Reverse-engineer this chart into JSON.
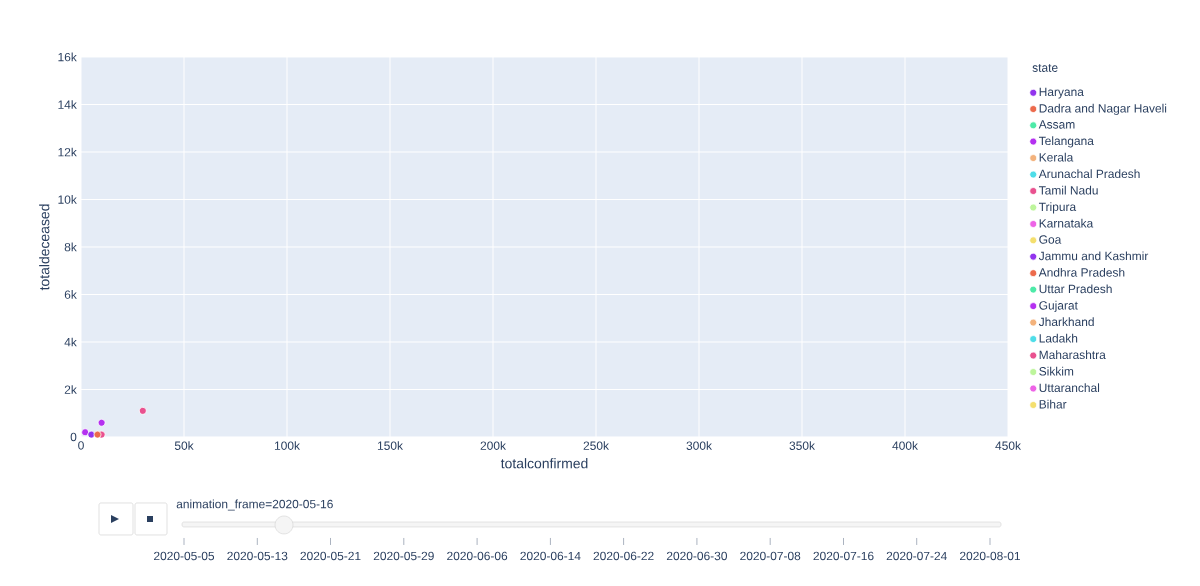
{
  "chart_data": {
    "type": "scatter",
    "xlabel": "totalconfirmed",
    "ylabel": "totaldeceased",
    "legend_title": "state",
    "xlim": [
      0,
      450000
    ],
    "ylim": [
      0,
      16000
    ],
    "xticks": [
      0,
      {
        "value": 50000,
        "label": "50k"
      },
      {
        "value": 100000,
        "label": "100k"
      },
      {
        "value": 150000,
        "label": "150k"
      },
      {
        "value": 200000,
        "label": "200k"
      },
      {
        "value": 250000,
        "label": "250k"
      },
      {
        "value": 300000,
        "label": "300k"
      },
      {
        "value": 350000,
        "label": "350k"
      },
      {
        "value": 400000,
        "label": "400k"
      },
      {
        "value": 450000,
        "label": "450k"
      }
    ],
    "yticks": [
      0,
      {
        "value": 2000,
        "label": "2k"
      },
      {
        "value": 4000,
        "label": "4k"
      },
      {
        "value": 6000,
        "label": "6k"
      },
      {
        "value": 8000,
        "label": "8k"
      },
      {
        "value": 10000,
        "label": "10k"
      },
      {
        "value": 12000,
        "label": "12k"
      },
      {
        "value": 14000,
        "label": "14k"
      },
      {
        "value": 16000,
        "label": "16k"
      }
    ],
    "grid": true,
    "legend": "right",
    "marker": "circle",
    "series": [
      {
        "name": "Haryana",
        "color": "#9234ee",
        "x": [
          null
        ],
        "values": [
          null
        ]
      },
      {
        "name": "Dadra and Nagar Haveli",
        "color": "#ec6a4c",
        "x": [
          null
        ],
        "values": [
          null
        ]
      },
      {
        "name": "Assam",
        "color": "#4deaa8",
        "x": [
          null
        ],
        "values": [
          null
        ]
      },
      {
        "name": "Telangana",
        "color": "#b430f0",
        "x": [
          2000
        ],
        "values": [
          200
        ]
      },
      {
        "name": "Kerala",
        "color": "#f3b27c",
        "x": [
          null
        ],
        "values": [
          null
        ]
      },
      {
        "name": "Arunachal Pradesh",
        "color": "#4edde8",
        "x": [
          null
        ],
        "values": [
          null
        ]
      },
      {
        "name": "Tamil Nadu",
        "color": "#e9518f",
        "x": [
          10000
        ],
        "values": [
          100
        ]
      },
      {
        "name": "Tripura",
        "color": "#bdf59b",
        "x": [
          null
        ],
        "values": [
          null
        ]
      },
      {
        "name": "Karnataka",
        "color": "#ed63e6",
        "x": [
          null
        ],
        "values": [
          null
        ]
      },
      {
        "name": "Goa",
        "color": "#f4df6e",
        "x": [
          null
        ],
        "values": [
          null
        ]
      },
      {
        "name": "Jammu and Kashmir",
        "color": "#9234ee",
        "x": [
          5000
        ],
        "values": [
          100
        ]
      },
      {
        "name": "Andhra Pradesh",
        "color": "#ec6a4c",
        "x": [
          8000
        ],
        "values": [
          100
        ]
      },
      {
        "name": "Uttar Pradesh",
        "color": "#4deaa8",
        "x": [
          null
        ],
        "values": [
          null
        ]
      },
      {
        "name": "Gujarat",
        "color": "#b430f0",
        "x": [
          10000
        ],
        "values": [
          600
        ]
      },
      {
        "name": "Jharkhand",
        "color": "#f3b27c",
        "x": [
          null
        ],
        "values": [
          null
        ]
      },
      {
        "name": "Ladakh",
        "color": "#4edde8",
        "x": [
          null
        ],
        "values": [
          null
        ]
      },
      {
        "name": "Maharashtra",
        "color": "#e9518f",
        "x": [
          30000
        ],
        "values": [
          1100
        ]
      },
      {
        "name": "Sikkim",
        "color": "#bdf59b",
        "x": [
          null
        ],
        "values": [
          null
        ]
      },
      {
        "name": "Uttaranchal",
        "color": "#ed63e6",
        "x": [
          null
        ],
        "values": [
          null
        ]
      },
      {
        "name": "Bihar",
        "color": "#f4df6e",
        "x": [
          null
        ],
        "values": [
          null
        ]
      }
    ],
    "annotations": [
      "animation_frame=2020-05-16",
      "2020-05-05",
      "2020-05-13",
      "2020-05-21",
      "2020-05-29",
      "2020-06-06",
      "2020-06-14",
      "2020-06-22",
      "2020-06-30",
      "2020-07-08",
      "2020-07-16",
      "2020-07-24",
      "2020-08-01"
    ]
  }
}
